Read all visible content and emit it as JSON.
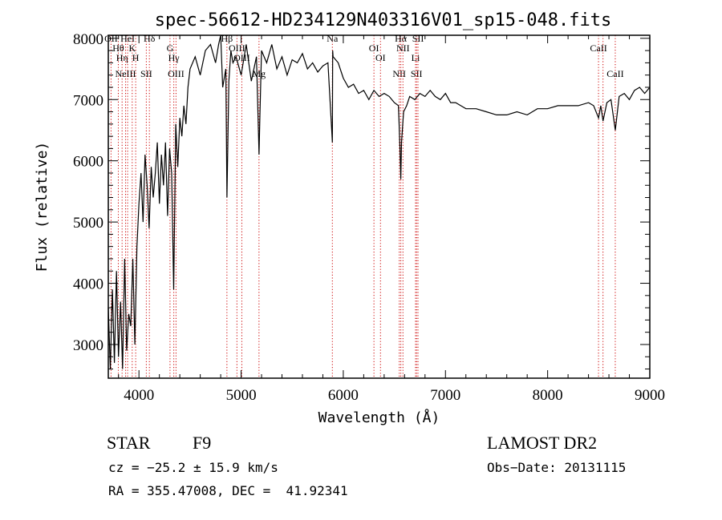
{
  "chart_data": {
    "type": "line",
    "title": "spec-56612-HD234129N403316V01_sp15-048.fits",
    "xlabel": "Wavelength (Å)",
    "ylabel": "Flux (relative)",
    "xlim": [
      3700,
      9000
    ],
    "ylim": [
      2450,
      8050
    ],
    "xticks": [
      4000,
      5000,
      6000,
      7000,
      8000,
      9000
    ],
    "yticks": [
      3000,
      4000,
      5000,
      6000,
      7000,
      8000
    ],
    "grid": false,
    "legend": "none",
    "series": [
      {
        "x": [
          3700,
          3720,
          3740,
          3760,
          3780,
          3800,
          3820,
          3840,
          3860,
          3880,
          3900,
          3920,
          3940,
          3960,
          3980,
          4000,
          4020,
          4040,
          4060,
          4080,
          4100,
          4120,
          4140,
          4160,
          4180,
          4200,
          4220,
          4240,
          4260,
          4280,
          4300,
          4320,
          4340,
          4360,
          4380,
          4400,
          4420,
          4440,
          4460,
          4480,
          4500,
          4550,
          4600,
          4650,
          4700,
          4750,
          4780,
          4800,
          4820,
          4850,
          4861,
          4880,
          4900,
          4920,
          4950,
          5000,
          5050,
          5100,
          5150,
          5175,
          5185,
          5200,
          5250,
          5300,
          5350,
          5400,
          5450,
          5500,
          5550,
          5600,
          5650,
          5700,
          5750,
          5800,
          5850,
          5890,
          5893,
          5896,
          5900,
          5950,
          6000,
          6050,
          6100,
          6150,
          6200,
          6250,
          6300,
          6350,
          6400,
          6450,
          6500,
          6540,
          6555,
          6563,
          6570,
          6590,
          6620,
          6650,
          6700,
          6750,
          6800,
          6850,
          6900,
          6950,
          7000,
          7050,
          7100,
          7150,
          7200,
          7300,
          7400,
          7500,
          7600,
          7700,
          7800,
          7900,
          8000,
          8100,
          8200,
          8300,
          8400,
          8450,
          8498,
          8520,
          8542,
          8580,
          8620,
          8662,
          8700,
          8750,
          8800,
          8850,
          8900,
          8950,
          9000
        ],
        "y": [
          3600,
          2600,
          3900,
          2700,
          4200,
          2800,
          3700,
          2600,
          4400,
          2900,
          3500,
          3300,
          4400,
          3000,
          4600,
          5300,
          5800,
          5000,
          6100,
          5600,
          4900,
          5900,
          5400,
          5800,
          6300,
          5300,
          6100,
          5600,
          6300,
          5100,
          6200,
          5800,
          3900,
          6600,
          5900,
          6700,
          6400,
          6900,
          6600,
          7200,
          7500,
          7700,
          7400,
          7800,
          7900,
          7600,
          7900,
          8050,
          7200,
          7500,
          5400,
          7300,
          7800,
          7600,
          7700,
          7400,
          7900,
          7300,
          7700,
          6100,
          6800,
          7800,
          7600,
          7900,
          7500,
          7700,
          7400,
          7650,
          7600,
          7750,
          7500,
          7600,
          7450,
          7550,
          7600,
          6400,
          6300,
          7800,
          7700,
          7600,
          7350,
          7200,
          7250,
          7100,
          7150,
          7000,
          7150,
          7050,
          7100,
          7050,
          6950,
          6900,
          6200,
          5700,
          6300,
          6800,
          6900,
          7050,
          7000,
          7100,
          7050,
          7150,
          7050,
          7000,
          7100,
          6950,
          6950,
          6900,
          6850,
          6850,
          6800,
          6750,
          6750,
          6800,
          6750,
          6850,
          6850,
          6900,
          6900,
          6900,
          6950,
          6900,
          6700,
          6900,
          6650,
          6950,
          7000,
          6500,
          7050,
          7100,
          7000,
          7150,
          7200,
          7100,
          7200
        ]
      }
    ],
    "lines": [
      {
        "x": 3727,
        "labels": [
          "OII"
        ]
      },
      {
        "x": 3798,
        "labels": [
          "Hθ"
        ]
      },
      {
        "x": 3835,
        "labels": [
          "Hη"
        ]
      },
      {
        "x": 3869,
        "labels": [
          "NeIII"
        ]
      },
      {
        "x": 3889,
        "labels": [
          "HeI"
        ]
      },
      {
        "x": 3934,
        "labels": [
          "K"
        ]
      },
      {
        "x": 3968,
        "labels": [
          "H"
        ]
      },
      {
        "x": 4072,
        "labels": [
          "SII"
        ]
      },
      {
        "x": 4102,
        "labels": [
          "Hδ"
        ]
      },
      {
        "x": 4304,
        "labels": [
          "G"
        ]
      },
      {
        "x": 4341,
        "labels": [
          "Hγ"
        ]
      },
      {
        "x": 4363,
        "labels": [
          "OIII"
        ]
      },
      {
        "x": 4861,
        "labels": [
          "Hβ"
        ]
      },
      {
        "x": 4959,
        "labels": [
          "OIII"
        ]
      },
      {
        "x": 5007,
        "labels": [
          "OIII"
        ]
      },
      {
        "x": 5175,
        "labels": [
          "Mg"
        ]
      },
      {
        "x": 5893,
        "labels": [
          "Na"
        ]
      },
      {
        "x": 6300,
        "labels": [
          "OI"
        ]
      },
      {
        "x": 6364,
        "labels": [
          "OI"
        ]
      },
      {
        "x": 6548,
        "labels": [
          "NII"
        ]
      },
      {
        "x": 6563,
        "labels": [
          "Hα"
        ]
      },
      {
        "x": 6584,
        "labels": [
          "NII"
        ]
      },
      {
        "x": 6707,
        "labels": [
          "Li"
        ]
      },
      {
        "x": 6717,
        "labels": [
          "SII"
        ]
      },
      {
        "x": 6731,
        "labels": [
          "SII"
        ]
      },
      {
        "x": 8498,
        "labels": [
          "CaII"
        ]
      },
      {
        "x": 8542,
        "labels": []
      },
      {
        "x": 8662,
        "labels": [
          "CaII"
        ]
      }
    ],
    "line_color": "#cc0000",
    "spectrum_color": "#000000"
  },
  "info": {
    "object_class": "STAR",
    "subclass": "F9",
    "survey": "LAMOST DR2",
    "cz": "cz = −25.2 ± 15.9 km/s",
    "obs_date": "Obs−Date: 20131115",
    "coords": "RA = 355.47008, DEC =  41.92341"
  }
}
